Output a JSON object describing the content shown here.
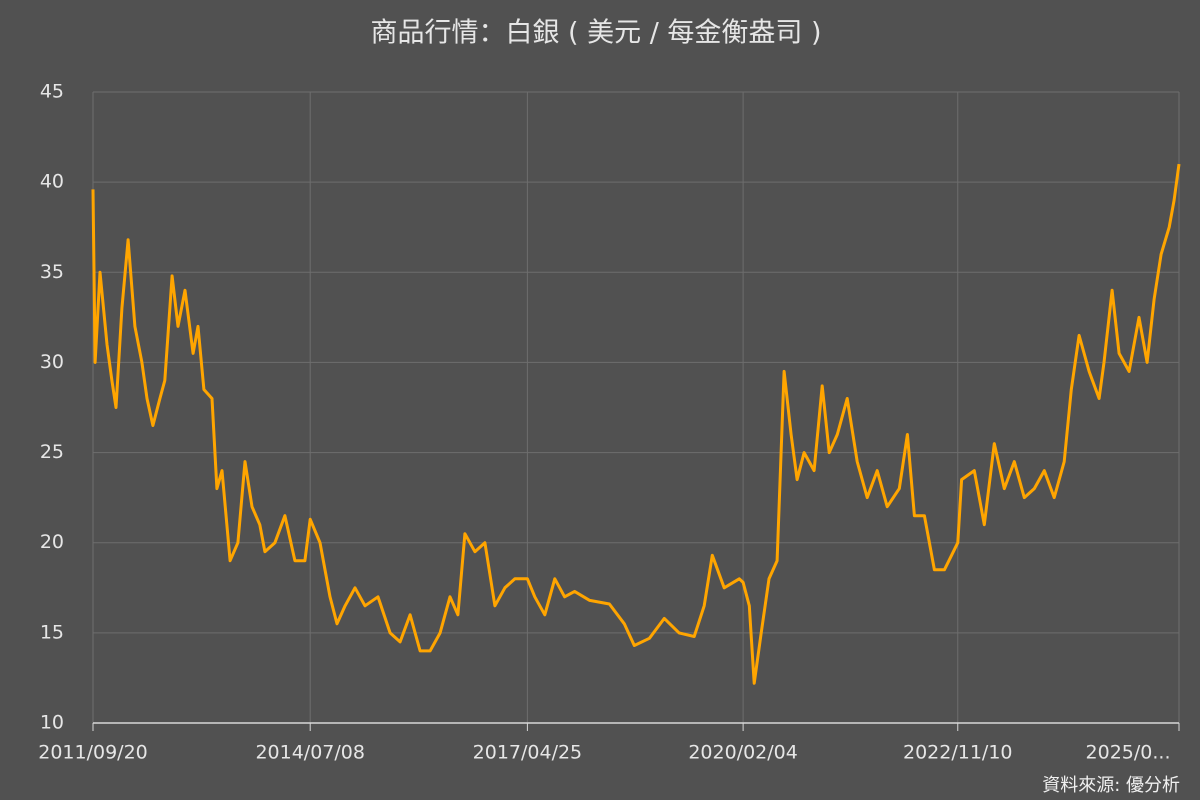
{
  "chart_data": {
    "type": "line",
    "title": "商品行情：白銀 ( 美元 / 每金衡盎司 )",
    "source": "資料來源: 優分析",
    "background": "#515151",
    "grid": true,
    "xlim": [
      "2011/09/20",
      "2025/09/16"
    ],
    "xticks": [
      "2011/09/20",
      "2014/07/08",
      "2017/04/25",
      "2020/02/04",
      "2022/11/10",
      {
        "value": "2025/09/16",
        "label": "2025/0..."
      }
    ],
    "ylim": [
      10,
      45
    ],
    "yticks": [
      10,
      15,
      20,
      25,
      30,
      35,
      40,
      45
    ],
    "x": [
      "2011/09/20",
      "2011/09/30",
      "2011/10/23",
      "2011/11/25",
      "2011/12/18",
      "2012/01/06",
      "2012/02/03",
      "2012/03/03",
      "2012/04/04",
      "2012/05/07",
      "2012/05/31",
      "2012/06/28",
      "2012/07/31",
      "2012/08/23",
      "2012/09/26",
      "2012/10/24",
      "2012/11/26",
      "2013/01/03",
      "2013/01/26",
      "2013/02/23",
      "2013/04/02",
      "2013/04/25",
      "2013/05/19",
      "2013/06/26",
      "2013/08/02",
      "2013/09/04",
      "2013/10/07",
      "2013/11/13",
      "2013/12/07",
      "2014/01/23",
      "2014/03/11",
      "2014/04/27",
      "2014/06/13",
      "2014/07/08",
      "2014/08/23",
      "2014/10/09",
      "2014/11/11",
      "2014/12/19",
      "2015/02/04",
      "2015/03/23",
      "2015/05/23",
      "2015/07/19",
      "2015/09/04",
      "2015/10/21",
      "2015/12/07",
      "2016/01/23",
      "2016/03/10",
      "2016/04/26",
      "2016/06/02",
      "2016/07/05",
      "2016/08/21",
      "2016/10/07",
      "2016/11/23",
      "2017/01/09",
      "2017/02/25",
      "2017/04/25",
      "2017/05/30",
      "2017/07/16",
      "2017/09/01",
      "2017/10/17",
      "2017/12/03",
      "2018/02/12",
      "2018/05/16",
      "2018/07/25",
      "2018/09/10",
      "2018/11/20",
      "2019/01/29",
      "2019/04/09",
      "2019/06/19",
      "2019/08/05",
      "2019/09/12",
      "2019/11/07",
      "2020/01/17",
      "2020/02/04",
      "2020/03/04",
      "2020/03/27",
      "2020/04/29",
      "2020/06/05",
      "2020/07/13",
      "2020/08/15",
      "2020/09/17",
      "2020/10/15",
      "2020/11/17",
      "2021/01/03",
      "2021/02/10",
      "2021/03/15",
      "2021/04/22",
      "2021/06/08",
      "2021/07/25",
      "2021/09/10",
      "2021/10/27",
      "2021/12/13",
      "2022/02/08",
      "2022/03/18",
      "2022/04/20",
      "2022/06/06",
      "2022/07/23",
      "2022/09/08",
      "2022/11/10",
      "2022/11/28",
      "2023/01/27",
      "2023/03/15",
      "2023/05/01",
      "2023/06/17",
      "2023/08/03",
      "2023/09/19",
      "2023/11/05",
      "2023/12/22",
      "2024/02/07",
      "2024/03/25",
      "2024/04/27",
      "2024/06/03",
      "2024/07/20",
      "2024/09/05",
      "2024/09/28",
      "2024/11/05",
      "2024/12/08",
      "2025/01/24",
      "2025/03/12",
      "2025/04/19",
      "2025/05/22",
      "2025/06/24",
      "2025/08/01",
      "2025/08/24",
      "2025/09/16"
    ],
    "series": [
      {
        "name": "白銀",
        "color": "#ffa500",
        "values": [
          39.6,
          30,
          35,
          31,
          29,
          27.5,
          33,
          36.8,
          32,
          30,
          28,
          26.5,
          28,
          29,
          34.8,
          32,
          34,
          30.5,
          32,
          28.5,
          28,
          23,
          24,
          19,
          20,
          24.5,
          22,
          21,
          19.5,
          20,
          21.5,
          19,
          19,
          21.3,
          20,
          17,
          15.5,
          16.5,
          17.5,
          16.5,
          17,
          15,
          14.5,
          16,
          14,
          14,
          15,
          17,
          16,
          20.5,
          19.5,
          20,
          16.5,
          17.5,
          18,
          18,
          17,
          16,
          18,
          17,
          17.3,
          16.8,
          16.6,
          15.5,
          14.3,
          14.7,
          15.8,
          15,
          14.8,
          16.5,
          19.3,
          17.5,
          18,
          17.8,
          16.5,
          12.2,
          15,
          18,
          19,
          29.5,
          26,
          23.5,
          25,
          24,
          28.7,
          25,
          26,
          28,
          24.5,
          22.5,
          24,
          22,
          23,
          26,
          21.5,
          21.5,
          18.5,
          18.5,
          20,
          23.5,
          24,
          21,
          25.5,
          23,
          24.5,
          22.5,
          23,
          24,
          22.5,
          24.5,
          28.5,
          31.5,
          29.5,
          28,
          30,
          34,
          30.5,
          29.5,
          32.5,
          30,
          33.5,
          36,
          37.5,
          39,
          41
        ]
      }
    ]
  }
}
